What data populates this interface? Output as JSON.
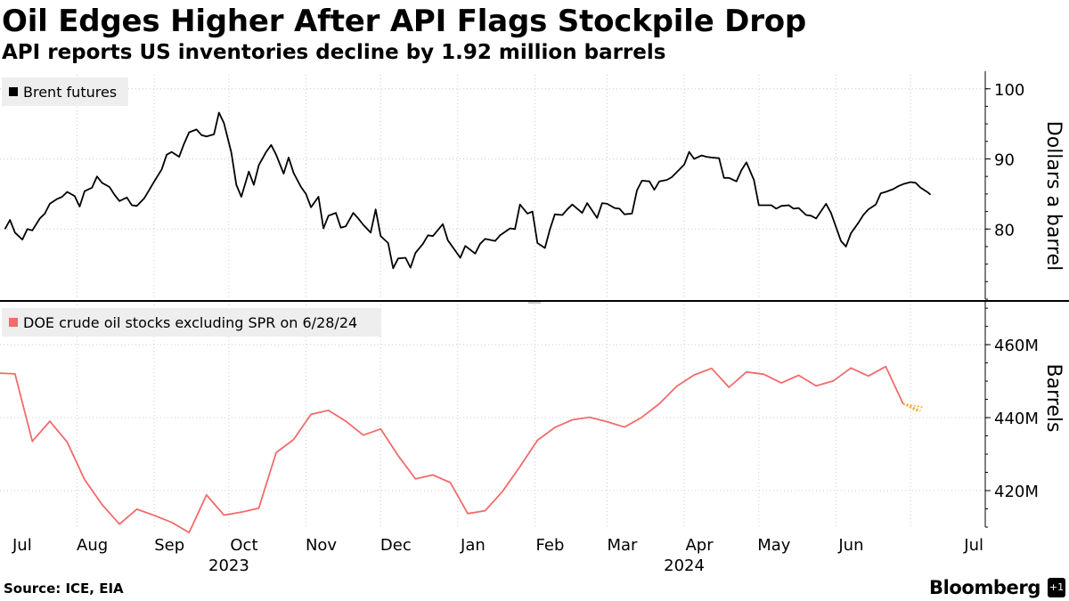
{
  "header": {
    "title": "Oil Edges Higher After API Flags Stockpile Drop",
    "subtitle": "API reports US inventories decline by 1.92 million barrels"
  },
  "footer": {
    "source": "Source: ICE, EIA",
    "brand": "Bloomberg",
    "brand_box": "+1"
  },
  "colors": {
    "brent": "#000000",
    "stocks": "#f26b6b",
    "projection": "#f5a623",
    "grid": "#cccccc",
    "legend_bg": "#eeeeee",
    "divider": "#000000"
  },
  "chart_data": [
    {
      "type": "line",
      "title": "Brent futures",
      "legend": "Brent futures",
      "ylabel": "Dollars a barrel",
      "ylim": [
        70,
        102
      ],
      "yticks": [
        80,
        90,
        100
      ],
      "ytick_labels": [
        "80",
        "90",
        "100"
      ],
      "x_start": "2023-07-01",
      "x_end": "2024-07-31",
      "series": [
        {
          "name": "Brent futures",
          "x": [
            "2023-07-03",
            "2023-07-05",
            "2023-07-07",
            "2023-07-10",
            "2023-07-12",
            "2023-07-14",
            "2023-07-17",
            "2023-07-19",
            "2023-07-21",
            "2023-07-24",
            "2023-07-26",
            "2023-07-28",
            "2023-07-31",
            "2023-08-02",
            "2023-08-04",
            "2023-08-07",
            "2023-08-09",
            "2023-08-11",
            "2023-08-14",
            "2023-08-16",
            "2023-08-18",
            "2023-08-21",
            "2023-08-23",
            "2023-08-25",
            "2023-08-28",
            "2023-08-30",
            "2023-09-01",
            "2023-09-04",
            "2023-09-06",
            "2023-09-08",
            "2023-09-11",
            "2023-09-13",
            "2023-09-15",
            "2023-09-18",
            "2023-09-20",
            "2023-09-22",
            "2023-09-25",
            "2023-09-27",
            "2023-09-29",
            "2023-10-02",
            "2023-10-04",
            "2023-10-06",
            "2023-10-09",
            "2023-10-11",
            "2023-10-13",
            "2023-10-16",
            "2023-10-18",
            "2023-10-20",
            "2023-10-23",
            "2023-10-25",
            "2023-10-27",
            "2023-10-30",
            "2023-11-01",
            "2023-11-03",
            "2023-11-06",
            "2023-11-08",
            "2023-11-10",
            "2023-11-13",
            "2023-11-15",
            "2023-11-17",
            "2023-11-20",
            "2023-11-22",
            "2023-11-24",
            "2023-11-27",
            "2023-11-29",
            "2023-12-01",
            "2023-12-04",
            "2023-12-06",
            "2023-12-08",
            "2023-12-11",
            "2023-12-13",
            "2023-12-15",
            "2023-12-18",
            "2023-12-20",
            "2023-12-22",
            "2023-12-26",
            "2023-12-28",
            "2024-01-02",
            "2024-01-04",
            "2024-01-08",
            "2024-01-10",
            "2024-01-12",
            "2024-01-16",
            "2024-01-18",
            "2024-01-22",
            "2024-01-24",
            "2024-01-26",
            "2024-01-29",
            "2024-01-31",
            "2024-02-02",
            "2024-02-05",
            "2024-02-07",
            "2024-02-09",
            "2024-02-12",
            "2024-02-14",
            "2024-02-16",
            "2024-02-20",
            "2024-02-22",
            "2024-02-26",
            "2024-02-28",
            "2024-03-01",
            "2024-03-04",
            "2024-03-06",
            "2024-03-08",
            "2024-03-11",
            "2024-03-13",
            "2024-03-15",
            "2024-03-18",
            "2024-03-20",
            "2024-03-22",
            "2024-03-25",
            "2024-03-27",
            "2024-04-01",
            "2024-04-03",
            "2024-04-05",
            "2024-04-08",
            "2024-04-10",
            "2024-04-12",
            "2024-04-15",
            "2024-04-17",
            "2024-04-19",
            "2024-04-22",
            "2024-04-24",
            "2024-04-26",
            "2024-04-29",
            "2024-05-01",
            "2024-05-03",
            "2024-05-06",
            "2024-05-08",
            "2024-05-10",
            "2024-05-13",
            "2024-05-15",
            "2024-05-17",
            "2024-05-20",
            "2024-05-22",
            "2024-05-24",
            "2024-05-28",
            "2024-05-30",
            "2024-06-03",
            "2024-06-05",
            "2024-06-07",
            "2024-06-10",
            "2024-06-12",
            "2024-06-14",
            "2024-06-17",
            "2024-06-19",
            "2024-06-21",
            "2024-06-24",
            "2024-06-26",
            "2024-06-28",
            "2024-07-01",
            "2024-07-03",
            "2024-07-05",
            "2024-07-08",
            "2024-07-09"
          ],
          "values": [
            80.0,
            81.3,
            79.5,
            78.5,
            80.0,
            79.8,
            81.5,
            82.2,
            83.6,
            84.3,
            84.6,
            85.3,
            84.7,
            83.2,
            85.4,
            85.9,
            87.5,
            86.6,
            86.0,
            84.9,
            84.0,
            84.5,
            83.4,
            83.3,
            84.4,
            85.6,
            86.8,
            88.5,
            90.6,
            91.0,
            90.3,
            92.2,
            93.8,
            94.2,
            93.4,
            93.2,
            93.5,
            96.6,
            95.1,
            90.9,
            86.3,
            84.6,
            88.2,
            86.3,
            89.1,
            91.0,
            92.0,
            90.6,
            87.9,
            90.2,
            88.0,
            86.0,
            85.0,
            83.1,
            84.6,
            80.1,
            81.9,
            82.3,
            80.2,
            80.4,
            82.3,
            81.5,
            80.6,
            79.5,
            82.8,
            79.0,
            78.0,
            74.4,
            75.8,
            75.9,
            74.5,
            76.6,
            77.9,
            79.1,
            79.0,
            80.7,
            78.4,
            75.9,
            77.6,
            76.5,
            77.9,
            78.6,
            78.3,
            79.1,
            80.1,
            80.0,
            83.5,
            82.2,
            82.5,
            78.0,
            77.3,
            79.9,
            82.1,
            82.0,
            82.8,
            83.5,
            82.3,
            83.7,
            81.6,
            83.7,
            83.6,
            83.0,
            82.9,
            82.1,
            82.2,
            85.5,
            86.9,
            86.8,
            85.6,
            86.8,
            87.0,
            87.4,
            89.2,
            91.0,
            90.0,
            90.5,
            90.3,
            90.2,
            90.1,
            87.3,
            87.3,
            86.8,
            88.4,
            89.5,
            87.0,
            83.4,
            83.4,
            83.4,
            82.9,
            83.3,
            83.4,
            82.9,
            83.0,
            82.0,
            81.9,
            81.5,
            83.6,
            82.3,
            78.3,
            77.5,
            79.4,
            80.9,
            82.0,
            82.8,
            83.5,
            85.1,
            85.3,
            85.7,
            86.1,
            86.4,
            86.7,
            86.6,
            85.9,
            85.2,
            84.9
          ]
        }
      ]
    },
    {
      "type": "line",
      "title": "DOE crude oil stocks excluding SPR on 6/28/24",
      "legend": "DOE crude oil stocks excluding SPR on 6/28/24",
      "ylabel": "Barrels",
      "ylim": [
        410,
        471
      ],
      "yticks": [
        420,
        440,
        460
      ],
      "ytick_labels": [
        "420M",
        "440M",
        "460M"
      ],
      "units": "million barrels",
      "x_start": "2023-07-01",
      "x_end": "2024-07-31",
      "series": [
        {
          "name": "DOE crude oil stocks excluding SPR",
          "x": [
            "2023-06-30",
            "2023-07-07",
            "2023-07-14",
            "2023-07-21",
            "2023-07-28",
            "2023-08-04",
            "2023-08-11",
            "2023-08-18",
            "2023-08-25",
            "2023-09-01",
            "2023-09-08",
            "2023-09-15",
            "2023-09-22",
            "2023-09-29",
            "2023-10-06",
            "2023-10-13",
            "2023-10-20",
            "2023-10-27",
            "2023-11-03",
            "2023-11-10",
            "2023-11-17",
            "2023-11-24",
            "2023-12-01",
            "2023-12-08",
            "2023-12-15",
            "2023-12-22",
            "2023-12-29",
            "2024-01-05",
            "2024-01-12",
            "2024-01-19",
            "2024-01-26",
            "2024-02-02",
            "2024-02-09",
            "2024-02-16",
            "2024-02-23",
            "2024-03-01",
            "2024-03-08",
            "2024-03-15",
            "2024-03-22",
            "2024-03-29",
            "2024-04-05",
            "2024-04-12",
            "2024-04-19",
            "2024-04-26",
            "2024-05-03",
            "2024-05-10",
            "2024-05-17",
            "2024-05-24",
            "2024-05-31",
            "2024-06-07",
            "2024-06-14",
            "2024-06-21",
            "2024-06-28"
          ],
          "values": [
            452.2,
            452.0,
            433.5,
            439.0,
            433.3,
            423.0,
            416.2,
            410.8,
            414.9,
            413.2,
            411.3,
            408.5,
            418.8,
            413.3,
            414.1,
            415.2,
            430.4,
            434.0,
            440.9,
            442.0,
            439.0,
            435.2,
            436.9,
            429.6,
            423.2,
            424.3,
            422.2,
            413.7,
            414.5,
            419.8,
            426.6,
            433.8,
            437.3,
            439.4,
            440.1,
            438.9,
            437.4,
            440.1,
            443.8,
            448.6,
            451.7,
            453.5,
            448.3,
            452.5,
            451.9,
            449.5,
            451.6,
            448.7,
            450.1,
            453.6,
            451.4,
            454.0,
            443.8
          ]
        },
        {
          "name": "API projected change",
          "style": "dotted",
          "x": [
            "2024-06-28",
            "2024-07-05"
          ],
          "values": [
            443.8,
            441.9
          ]
        }
      ]
    }
  ],
  "xaxis": {
    "months": [
      {
        "label": "Jul",
        "date": "2023-07-01"
      },
      {
        "label": "Aug",
        "date": "2023-08-01"
      },
      {
        "label": "Sep",
        "date": "2023-09-01"
      },
      {
        "label": "Oct",
        "date": "2023-10-01"
      },
      {
        "label": "Nov",
        "date": "2023-11-01"
      },
      {
        "label": "Dec",
        "date": "2023-12-01"
      },
      {
        "label": "Jan",
        "date": "2024-01-01"
      },
      {
        "label": "Feb",
        "date": "2024-02-01"
      },
      {
        "label": "Mar",
        "date": "2024-03-01"
      },
      {
        "label": "Apr",
        "date": "2024-04-01"
      },
      {
        "label": "May",
        "date": "2024-05-01"
      },
      {
        "label": "Jun",
        "date": "2024-06-01"
      },
      {
        "label": "Jul",
        "date": "2024-07-01"
      }
    ],
    "years": [
      {
        "label": "2023",
        "date": "2023-10-01"
      },
      {
        "label": "2024",
        "date": "2024-04-01"
      }
    ]
  }
}
